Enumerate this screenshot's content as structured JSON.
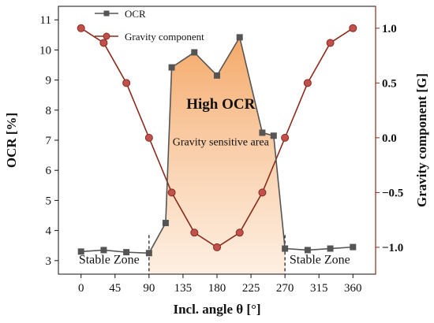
{
  "chart_data": {
    "type": "line",
    "xlabel": "Incl. angle θ [°]",
    "ylabel_left": "OCR [%]",
    "ylabel_right": "Gravity component [G]",
    "xlim": [
      -30,
      390
    ],
    "ylim_left": [
      2.55,
      11.45
    ],
    "ylim_right": [
      -1.245,
      1.2
    ],
    "x_ticks": [
      0,
      45,
      90,
      135,
      180,
      225,
      270,
      315,
      360
    ],
    "y_left_ticks": [
      3,
      4,
      5,
      6,
      7,
      8,
      9,
      10,
      11
    ],
    "y_right_ticks": [
      -1.0,
      -0.5,
      0.0,
      0.5,
      1.0
    ],
    "y_right_tick_labels": [
      "−1.0",
      "−0.5",
      "0.0",
      "0.5",
      "1.0"
    ],
    "grid": false,
    "legend_position": "top-left",
    "series": [
      {
        "name": "OCR",
        "axis": "left",
        "color": "#555555",
        "marker": "square",
        "x": [
          0,
          30,
          60,
          90,
          112,
          120,
          150,
          180,
          210,
          240,
          255,
          270,
          300,
          330,
          360
        ],
        "y": [
          3.3,
          3.35,
          3.28,
          3.25,
          4.25,
          9.42,
          9.92,
          9.15,
          10.42,
          7.25,
          7.15,
          3.4,
          3.35,
          3.4,
          3.45
        ]
      },
      {
        "name": "Gravity component",
        "axis": "right",
        "color": "#8b2a1a",
        "marker": "circle",
        "x": [
          0,
          30,
          60,
          90,
          120,
          150,
          180,
          210,
          240,
          270,
          300,
          330,
          360
        ],
        "y": [
          1.0,
          0.866,
          0.5,
          0.0,
          -0.5,
          -0.866,
          -1.0,
          -0.866,
          -0.5,
          0.0,
          0.5,
          0.866,
          1.0
        ]
      }
    ],
    "shaded_region": {
      "x_start": 90,
      "x_end": 270
    },
    "separator_lines_x": [
      90,
      270
    ],
    "annotations": {
      "high_ocr": "High OCR",
      "sensitive_area": "Gravity sensitive area",
      "stable_left": "Stable Zone",
      "stable_right": "Stable Zone"
    }
  },
  "colors": {
    "axis_left": "#111111",
    "axis_right": "#8b2a1a",
    "ocr": "#555555",
    "gravity_line": "#8b2a1a",
    "gravity_fill": "#c0504d",
    "shade_top": "#f4a460",
    "shade_bottom": "#fde8d5"
  }
}
